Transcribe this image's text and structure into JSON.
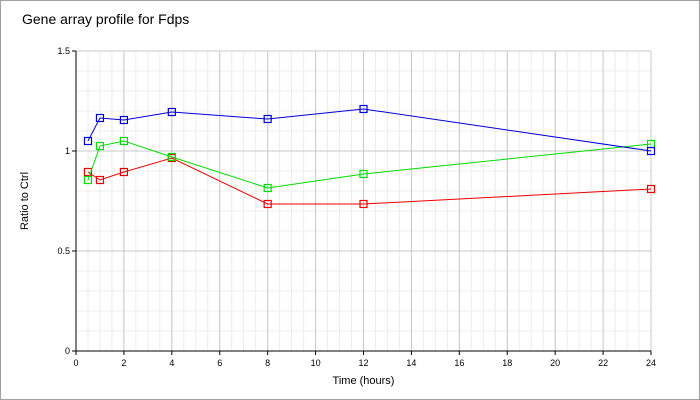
{
  "chart_data": {
    "type": "line",
    "title": "Gene array profile for Fdps",
    "xlabel": "Time (hours)",
    "ylabel": "Ratio to Ctrl",
    "xlim": [
      0,
      24
    ],
    "ylim": [
      0,
      1.5
    ],
    "xticks": [
      "0",
      "2",
      "4",
      "6",
      "8",
      "10",
      "12",
      "14",
      "16",
      "18",
      "20",
      "22",
      "24"
    ],
    "yticks": [
      "0",
      "0.5",
      "1",
      "1.5"
    ],
    "grid": true,
    "legend": "none",
    "x": [
      0.5,
      1,
      2,
      4,
      8,
      12,
      24
    ],
    "series": [
      {
        "color": "#0000dd",
        "values": [
          1.05,
          1.165,
          1.155,
          1.195,
          1.16,
          1.21,
          1.0
        ]
      },
      {
        "color": "#00dd00",
        "values": [
          0.855,
          1.025,
          1.05,
          0.97,
          0.815,
          0.885,
          1.035
        ]
      },
      {
        "color": "#ee0000",
        "values": [
          0.895,
          0.855,
          0.895,
          0.965,
          0.735,
          0.735,
          0.81
        ]
      }
    ]
  }
}
